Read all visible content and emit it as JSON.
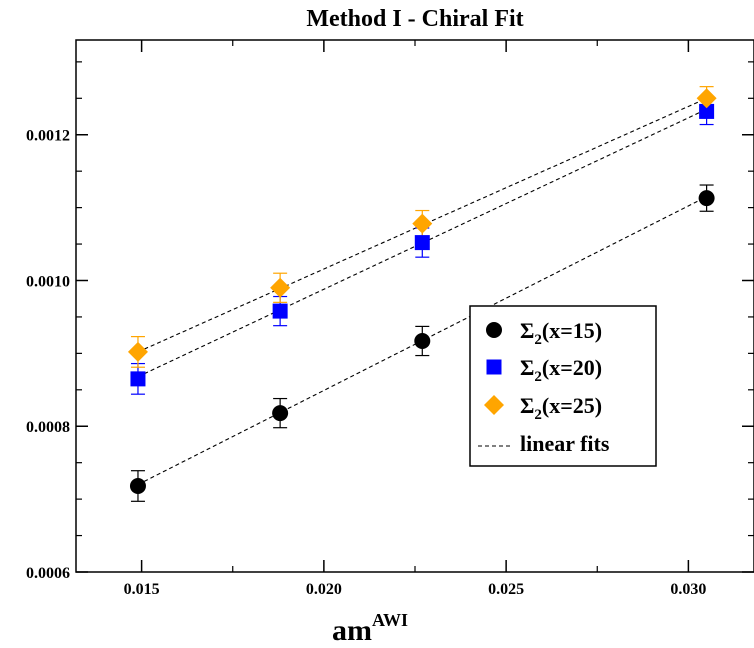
{
  "chart_data": {
    "type": "scatter",
    "title": "Method I - Chiral Fit",
    "xlabel": "am",
    "xlabel_superscript": "AWI",
    "ylabel": "",
    "xlim": [
      0.0132,
      0.0318
    ],
    "ylim": [
      0.0006,
      0.00133
    ],
    "x_ticks": [
      0.015,
      0.02,
      0.025,
      0.03
    ],
    "x_tick_labels": [
      "0.015",
      "0.020",
      "0.025",
      "0.030"
    ],
    "y_ticks": [
      0.0006,
      0.0008,
      0.001,
      0.0012
    ],
    "y_tick_labels": [
      "0.0006",
      "0.0008",
      "0.0010",
      "0.0012"
    ],
    "grid": false,
    "legend_position": "lower-right",
    "x": [
      0.0149,
      0.0188,
      0.0227,
      0.0305
    ],
    "series": [
      {
        "name": "Σ2(x=15)",
        "legend": {
          "symbol": "Σ",
          "sub": "2",
          "rest": "(x=15)"
        },
        "marker": "circle",
        "color": "#000000",
        "values": [
          0.000718,
          0.000818,
          0.000917,
          0.001113
        ],
        "errors": [
          2.1e-05,
          2e-05,
          2e-05,
          1.8e-05
        ],
        "fit": [
          0.00072,
          0.001115
        ]
      },
      {
        "name": "Σ2(x=20)",
        "legend": {
          "symbol": "Σ",
          "sub": "2",
          "rest": "(x=20)"
        },
        "marker": "square",
        "color": "#0000ff",
        "values": [
          0.000865,
          0.000958,
          0.001052,
          0.001232
        ],
        "errors": [
          2.1e-05,
          2e-05,
          2e-05,
          1.8e-05
        ],
        "fit": [
          0.000868,
          0.001235
        ]
      },
      {
        "name": "Σ2(x=25)",
        "legend": {
          "symbol": "Σ",
          "sub": "2",
          "rest": "(x=25)"
        },
        "marker": "diamond",
        "color": "#ffa500",
        "values": [
          0.000902,
          0.00099,
          0.001078,
          0.00125
        ],
        "errors": [
          2.1e-05,
          2e-05,
          1.8e-05,
          1.6e-05
        ],
        "fit": [
          0.000902,
          0.00125
        ]
      }
    ],
    "fit_line": {
      "label": "linear fits",
      "style": "dashed",
      "color": "#000000"
    }
  }
}
